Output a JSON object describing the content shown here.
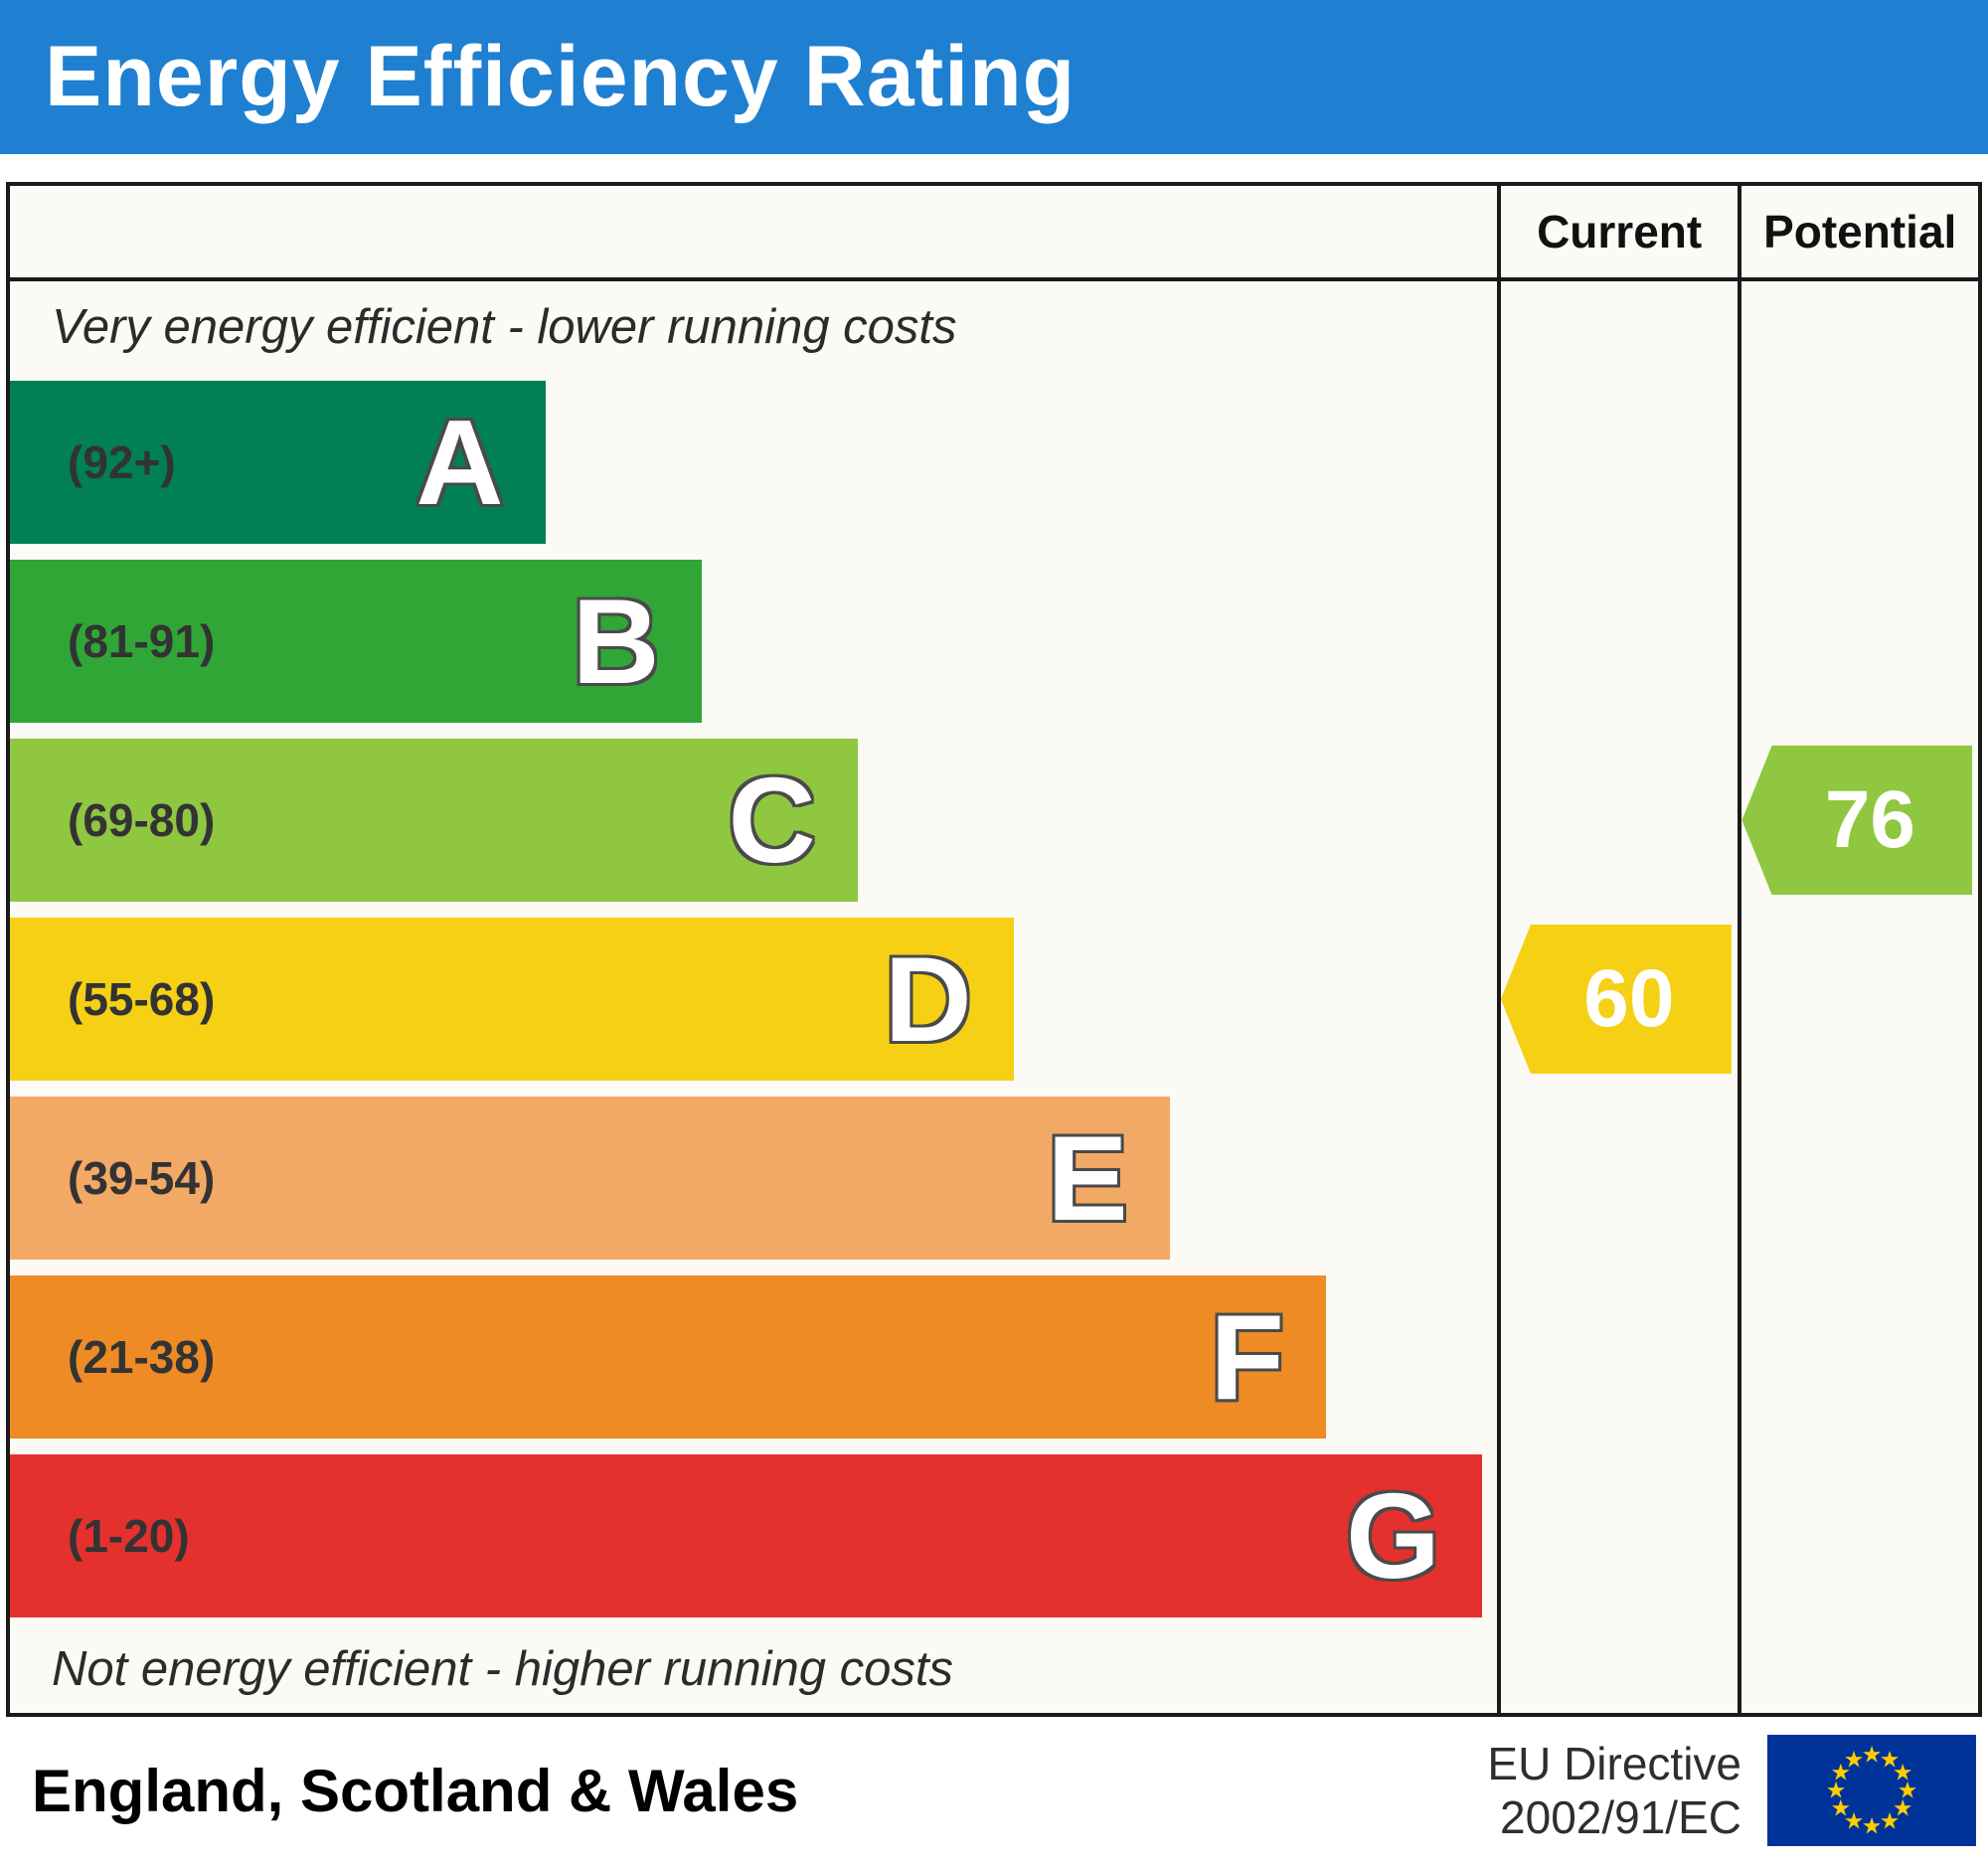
{
  "header": {
    "title": "Energy Efficiency Rating"
  },
  "columns": {
    "current": "Current",
    "potential": "Potential"
  },
  "notes": {
    "top": "Very energy efficient - lower running costs",
    "bottom": "Not energy efficient - higher running costs"
  },
  "bands": [
    {
      "letter": "A",
      "range": "(92+)",
      "color": "#008054",
      "width_pct": 36
    },
    {
      "letter": "B",
      "range": "(81-91)",
      "color": "#30a637",
      "width_pct": 46.5
    },
    {
      "letter": "C",
      "range": "(69-80)",
      "color": "#8fc740",
      "width_pct": 57
    },
    {
      "letter": "D",
      "range": "(55-68)",
      "color": "#f6d015",
      "width_pct": 67.5
    },
    {
      "letter": "E",
      "range": "(39-54)",
      "color": "#f3a966",
      "width_pct": 78
    },
    {
      "letter": "F",
      "range": "(21-38)",
      "color": "#ee8b25",
      "width_pct": 88.5
    },
    {
      "letter": "G",
      "range": "(1-20)",
      "color": "#e4312e",
      "width_pct": 99
    }
  ],
  "ratings": {
    "current": {
      "value": "60",
      "color": "#f6d015",
      "band": "D"
    },
    "potential": {
      "value": "76",
      "color": "#8fc740",
      "band": "C"
    }
  },
  "footer": {
    "region": "England, Scotland & Wales",
    "directive_line1": "EU Directive",
    "directive_line2": "2002/91/EC"
  },
  "flag": {
    "bg": "#003399",
    "star_color": "#ffcc00"
  },
  "chart_data": {
    "type": "bar",
    "title": "Energy Efficiency Rating",
    "categories": [
      "A (92+)",
      "B (81-91)",
      "C (69-80)",
      "D (55-68)",
      "E (39-54)",
      "F (21-38)",
      "G (1-20)"
    ],
    "series": [
      {
        "name": "band-bar-length-pct",
        "values": [
          36,
          46.5,
          57,
          67.5,
          78,
          88.5,
          99
        ]
      }
    ],
    "ratings": {
      "current": 60,
      "current_band": "D",
      "potential": 76,
      "potential_band": "C"
    },
    "annotations": [
      "Very energy efficient - lower running costs",
      "Not energy efficient - higher running costs",
      "England, Scotland & Wales",
      "EU Directive 2002/91/EC"
    ],
    "legend_position": "none",
    "grid": false
  }
}
